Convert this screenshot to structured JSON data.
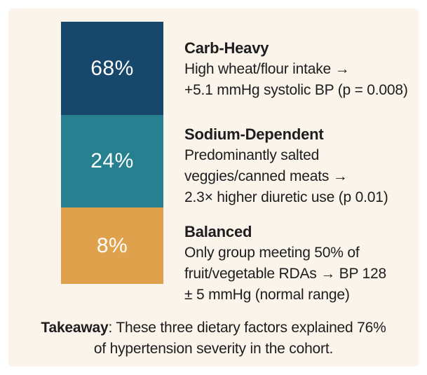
{
  "page": {
    "background": "#ffffff",
    "card_background": "#faf4ea",
    "text_color": "#1d1d1f",
    "value_text_color": "#ffffff"
  },
  "chart_data": {
    "type": "bar",
    "stacked": true,
    "orientation": "single-vertical-column",
    "categories": [
      "Carb-Heavy",
      "Sodium-Dependent",
      "Balanced"
    ],
    "values": [
      68,
      24,
      8
    ],
    "value_labels": [
      "68%",
      "24%",
      "8%"
    ],
    "segment_colors": [
      "#17476b",
      "#27808f",
      "#dfa14c"
    ],
    "annotations": [
      {
        "title": "Carb-Heavy",
        "lines": [
          "High wheat/flour intake →",
          "+5.1 mmHg systolic BP (p = 0.008)"
        ]
      },
      {
        "title": "Sodium-Dependent",
        "lines": [
          "Predominantly salted",
          "veggies/canned meats →",
          "2.3× higher diuretic use (p 0.01)"
        ]
      },
      {
        "title": "Balanced",
        "lines": [
          "Only group meeting 50% of",
          "fruit/vegetable RDAs → BP 128",
          "± 5 mmHg (normal range)"
        ]
      }
    ],
    "takeaway": {
      "line1_bold": "Takeaway",
      "line1_rest": ": These three dietary factors explained 76%",
      "line2": "of hypertension severity in the cohort."
    }
  }
}
